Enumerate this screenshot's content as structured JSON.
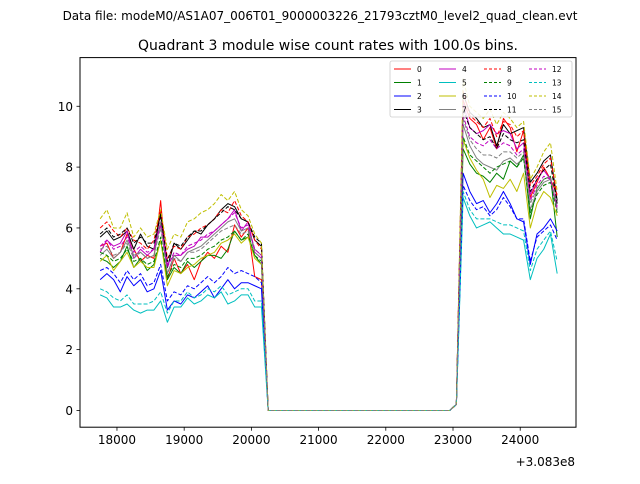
{
  "file_label": "Data file: modeM0/AS1A07_006T01_9000003226_21793cztM0_level2_quad_clean.evt",
  "chart_data": {
    "type": "line",
    "title": "Quadrant 3 module wise count rates with 100.0s bins.",
    "xlabel": "",
    "ylabel": "",
    "x_offset_label": "+3.083e8",
    "xlim": [
      17450,
      24830
    ],
    "ylim": [
      -0.55,
      11.6
    ],
    "x_ticks": [
      18000,
      19000,
      20000,
      21000,
      22000,
      23000,
      24000
    ],
    "x_tick_labels": [
      "18000",
      "19000",
      "20000",
      "21000",
      "22000",
      "23000",
      "24000"
    ],
    "y_ticks": [
      0,
      2,
      4,
      6,
      8,
      10
    ],
    "y_tick_labels": [
      "0",
      "2",
      "4",
      "6",
      "8",
      "10"
    ],
    "grid": false,
    "legend_position": "top-right",
    "x": [
      17750,
      17850,
      17950,
      18050,
      18150,
      18250,
      18350,
      18450,
      18550,
      18650,
      18750,
      18850,
      18950,
      19050,
      19150,
      19250,
      19350,
      19450,
      19550,
      19650,
      19750,
      19850,
      19950,
      20050,
      20150,
      20250,
      20350,
      20450,
      20550,
      20650,
      20750,
      20850,
      20950,
      21050,
      21150,
      21250,
      21350,
      21450,
      21550,
      21650,
      21750,
      21850,
      21950,
      22050,
      22150,
      22250,
      22350,
      22450,
      22550,
      22650,
      22750,
      22850,
      22950,
      23050,
      23150,
      23250,
      23350,
      23450,
      23550,
      23650,
      23750,
      23850,
      23950,
      24050,
      24150,
      24250,
      24350,
      24450,
      24550
    ],
    "series": [
      {
        "name": "0",
        "color": "#ff0000",
        "dash": false,
        "values": [
          5.4,
          5.5,
          5.0,
          5.2,
          5.8,
          5.3,
          4.9,
          5.1,
          5.0,
          6.9,
          4.3,
          5.0,
          4.5,
          4.8,
          4.3,
          4.9,
          5.2,
          5.0,
          5.4,
          5.2,
          6.1,
          5.7,
          6.0,
          4.4,
          4.3,
          0.0,
          0,
          0,
          0,
          0,
          0,
          0,
          0,
          0,
          0,
          0,
          0,
          0,
          0,
          0,
          0,
          0,
          0,
          0,
          0,
          0,
          0,
          0,
          0,
          0,
          0,
          0,
          0,
          0.2,
          10.2,
          9.6,
          9.4,
          8.9,
          9.3,
          8.6,
          9.6,
          9.3,
          8.5,
          9.2,
          7.0,
          7.5,
          8.0,
          7.6,
          7.1
        ]
      },
      {
        "name": "1",
        "color": "#008000",
        "dash": false,
        "values": [
          5.0,
          4.9,
          4.7,
          4.9,
          5.4,
          4.7,
          5.0,
          4.6,
          4.8,
          5.6,
          4.3,
          4.7,
          4.5,
          4.9,
          4.7,
          4.9,
          5.1,
          5.1,
          5.0,
          5.3,
          5.9,
          5.6,
          5.7,
          5.1,
          4.8,
          0.0,
          0,
          0,
          0,
          0,
          0,
          0,
          0,
          0,
          0,
          0,
          0,
          0,
          0,
          0,
          0,
          0,
          0,
          0,
          0,
          0,
          0,
          0,
          0,
          0,
          0,
          0,
          0,
          0.2,
          8.6,
          8.1,
          7.8,
          7.7,
          7.5,
          7.8,
          7.6,
          8.2,
          8.0,
          8.4,
          6.3,
          7.3,
          7.6,
          7.7,
          5.7
        ]
      },
      {
        "name": "2",
        "color": "#0000ff",
        "dash": false,
        "values": [
          4.3,
          4.5,
          4.3,
          3.9,
          4.4,
          4.1,
          4.3,
          3.9,
          4.0,
          4.6,
          3.3,
          3.6,
          3.5,
          3.8,
          3.7,
          3.9,
          4.1,
          3.7,
          4.0,
          4.3,
          4.0,
          4.2,
          4.2,
          4.1,
          4.0,
          0.0,
          0,
          0,
          0,
          0,
          0,
          0,
          0,
          0,
          0,
          0,
          0,
          0,
          0,
          0,
          0,
          0,
          0,
          0,
          0,
          0,
          0,
          0,
          0,
          0,
          0,
          0,
          0,
          0.2,
          7.8,
          7.2,
          6.8,
          6.9,
          6.5,
          6.8,
          7.2,
          6.8,
          6.3,
          6.2,
          4.8,
          5.8,
          6.0,
          6.3,
          5.9
        ]
      },
      {
        "name": "3",
        "color": "#000000",
        "dash": false,
        "values": [
          5.7,
          5.9,
          5.6,
          5.7,
          5.9,
          5.3,
          5.8,
          5.4,
          5.3,
          6.5,
          4.7,
          5.5,
          5.3,
          5.6,
          5.9,
          5.8,
          6.1,
          6.3,
          6.6,
          6.8,
          6.7,
          6.3,
          6.2,
          5.6,
          5.4,
          0.0,
          0,
          0,
          0,
          0,
          0,
          0,
          0,
          0,
          0,
          0,
          0,
          0,
          0,
          0,
          0,
          0,
          0,
          0,
          0,
          0,
          0,
          0,
          0,
          0,
          0,
          0,
          0,
          0.2,
          10.4,
          9.8,
          9.6,
          9.3,
          9.4,
          8.7,
          9.4,
          9.1,
          9.2,
          9.3,
          7.5,
          7.8,
          8.2,
          8.4,
          6.9
        ]
      },
      {
        "name": "4",
        "color": "#c000c0",
        "dash": false,
        "values": [
          5.2,
          5.6,
          5.4,
          5.5,
          5.9,
          5.0,
          5.3,
          5.1,
          5.3,
          6.2,
          4.8,
          5.1,
          5.1,
          5.3,
          5.4,
          5.7,
          5.7,
          5.9,
          6.1,
          6.3,
          6.6,
          5.9,
          6.2,
          5.2,
          5.0,
          0.0,
          0,
          0,
          0,
          0,
          0,
          0,
          0,
          0,
          0,
          0,
          0,
          0,
          0,
          0,
          0,
          0,
          0,
          0,
          0,
          0,
          0,
          0,
          0,
          0,
          0,
          0,
          0,
          0.2,
          10.1,
          9.3,
          9.1,
          9.2,
          9.4,
          9.1,
          9.2,
          9.1,
          8.6,
          8.8,
          7.1,
          7.6,
          7.9,
          7.6,
          6.7
        ]
      },
      {
        "name": "5",
        "color": "#00bfbf",
        "dash": false,
        "values": [
          3.8,
          3.7,
          3.4,
          3.4,
          3.5,
          3.3,
          3.2,
          3.3,
          3.3,
          3.6,
          2.9,
          3.4,
          3.4,
          3.7,
          3.5,
          3.6,
          3.8,
          3.7,
          3.9,
          3.5,
          3.6,
          3.8,
          3.8,
          3.4,
          3.4,
          0.0,
          0,
          0,
          0,
          0,
          0,
          0,
          0,
          0,
          0,
          0,
          0,
          0,
          0,
          0,
          0,
          0,
          0,
          0,
          0,
          0,
          0,
          0,
          0,
          0,
          0,
          0,
          0,
          0.2,
          7.0,
          6.4,
          6.0,
          6.1,
          6.2,
          6.0,
          5.8,
          5.8,
          5.7,
          5.6,
          4.3,
          5.0,
          5.3,
          5.8,
          4.5
        ]
      },
      {
        "name": "6",
        "color": "#bfbf00",
        "dash": false,
        "values": [
          4.9,
          5.1,
          4.6,
          4.9,
          5.2,
          4.7,
          4.9,
          4.7,
          4.7,
          5.6,
          4.1,
          4.6,
          4.5,
          4.7,
          4.8,
          5.0,
          5.1,
          5.2,
          5.5,
          5.6,
          5.8,
          5.5,
          5.7,
          5.0,
          4.8,
          0.0,
          0,
          0,
          0,
          0,
          0,
          0,
          0,
          0,
          0,
          0,
          0,
          0,
          0,
          0,
          0,
          0,
          0,
          0,
          0,
          0,
          0,
          0,
          0,
          0,
          0,
          0,
          0,
          0.2,
          8.9,
          8.3,
          7.9,
          7.6,
          7.0,
          7.4,
          7.3,
          7.6,
          7.2,
          7.8,
          6.0,
          6.8,
          7.2,
          7.0,
          6.4
        ]
      },
      {
        "name": "7",
        "color": "#808080",
        "dash": false,
        "values": [
          5.1,
          5.3,
          5.0,
          5.2,
          5.6,
          5.1,
          5.2,
          5.0,
          5.1,
          6.2,
          4.5,
          5.1,
          4.9,
          5.2,
          5.3,
          5.4,
          5.6,
          5.8,
          6.0,
          6.2,
          6.3,
          5.9,
          6.0,
          5.3,
          5.1,
          0.0,
          0,
          0,
          0,
          0,
          0,
          0,
          0,
          0,
          0,
          0,
          0,
          0,
          0,
          0,
          0,
          0,
          0,
          0,
          0,
          0,
          0,
          0,
          0,
          0,
          0,
          0,
          0,
          0.2,
          9.4,
          8.7,
          8.3,
          8.1,
          8.0,
          7.9,
          8.2,
          8.3,
          8.1,
          8.3,
          6.6,
          7.2,
          7.5,
          7.6,
          6.6
        ]
      },
      {
        "name": "8",
        "color": "#ff0000",
        "dash": true,
        "values": [
          6.0,
          6.2,
          5.9,
          5.7,
          6.0,
          5.6,
          5.5,
          5.3,
          5.6,
          6.6,
          5.0,
          5.4,
          5.3,
          5.7,
          5.8,
          6.0,
          6.1,
          6.3,
          6.6,
          6.5,
          6.9,
          6.4,
          6.2,
          5.6,
          5.3,
          0.0,
          0,
          0,
          0,
          0,
          0,
          0,
          0,
          0,
          0,
          0,
          0,
          0,
          0,
          0,
          0,
          0,
          0,
          0,
          0,
          0,
          0,
          0,
          0,
          0,
          0,
          0,
          0,
          0.2,
          10.5,
          9.7,
          9.5,
          9.3,
          9.6,
          9.0,
          9.5,
          9.4,
          9.0,
          9.2,
          7.4,
          7.7,
          8.1,
          8.3,
          7.0
        ]
      },
      {
        "name": "9",
        "color": "#008000",
        "dash": true,
        "values": [
          5.2,
          5.1,
          4.9,
          5.0,
          5.3,
          4.9,
          5.0,
          4.8,
          4.9,
          5.7,
          4.4,
          4.8,
          4.7,
          5.0,
          5.0,
          5.1,
          5.3,
          5.4,
          5.6,
          5.7,
          5.9,
          5.6,
          5.8,
          5.1,
          4.9,
          0.0,
          0,
          0,
          0,
          0,
          0,
          0,
          0,
          0,
          0,
          0,
          0,
          0,
          0,
          0,
          0,
          0,
          0,
          0,
          0,
          0,
          0,
          0,
          0,
          0,
          0,
          0,
          0,
          0.2,
          9.0,
          8.4,
          8.2,
          8.0,
          7.8,
          8.0,
          8.1,
          8.2,
          8.0,
          8.3,
          6.5,
          7.1,
          7.4,
          7.5,
          6.5
        ]
      },
      {
        "name": "10",
        "color": "#0000ff",
        "dash": true,
        "values": [
          4.6,
          4.7,
          4.5,
          4.2,
          4.6,
          4.3,
          4.5,
          4.1,
          4.2,
          4.8,
          3.6,
          3.9,
          3.8,
          4.1,
          4.0,
          4.2,
          4.4,
          4.2,
          4.4,
          4.7,
          4.5,
          4.6,
          4.5,
          4.4,
          4.2,
          0.0,
          0,
          0,
          0,
          0,
          0,
          0,
          0,
          0,
          0,
          0,
          0,
          0,
          0,
          0,
          0,
          0,
          0,
          0,
          0,
          0,
          0,
          0,
          0,
          0,
          0,
          0,
          0,
          0.2,
          7.4,
          6.9,
          6.6,
          6.7,
          6.4,
          6.6,
          7.0,
          6.7,
          6.3,
          6.3,
          4.9,
          5.7,
          5.9,
          6.1,
          5.6
        ]
      },
      {
        "name": "11",
        "color": "#000000",
        "dash": true,
        "values": [
          5.8,
          6.0,
          5.7,
          5.8,
          6.0,
          5.5,
          5.7,
          5.5,
          5.5,
          6.4,
          4.9,
          5.5,
          5.4,
          5.7,
          5.9,
          5.9,
          6.1,
          6.3,
          6.5,
          6.7,
          6.6,
          6.3,
          6.2,
          5.7,
          5.5,
          0.0,
          0,
          0,
          0,
          0,
          0,
          0,
          0,
          0,
          0,
          0,
          0,
          0,
          0,
          0,
          0,
          0,
          0,
          0,
          0,
          0,
          0,
          0,
          0,
          0,
          0,
          0,
          0,
          0.2,
          9.9,
          9.3,
          9.1,
          8.9,
          9.0,
          8.6,
          9.1,
          8.9,
          8.8,
          8.9,
          7.2,
          7.6,
          7.9,
          8.1,
          6.8
        ]
      },
      {
        "name": "12",
        "color": "#c000c0",
        "dash": true,
        "values": [
          5.4,
          5.6,
          5.3,
          5.4,
          5.7,
          5.2,
          5.4,
          5.2,
          5.3,
          6.1,
          4.7,
          5.2,
          5.1,
          5.4,
          5.5,
          5.6,
          5.8,
          5.9,
          6.1,
          6.3,
          6.5,
          6.0,
          6.1,
          5.3,
          5.1,
          0.0,
          0,
          0,
          0,
          0,
          0,
          0,
          0,
          0,
          0,
          0,
          0,
          0,
          0,
          0,
          0,
          0,
          0,
          0,
          0,
          0,
          0,
          0,
          0,
          0,
          0,
          0,
          0,
          0.2,
          9.7,
          9.0,
          8.8,
          8.7,
          8.9,
          8.6,
          8.8,
          8.7,
          8.4,
          8.6,
          6.9,
          7.4,
          7.7,
          7.6,
          6.6
        ]
      },
      {
        "name": "13",
        "color": "#00bfbf",
        "dash": true,
        "values": [
          4.0,
          3.9,
          3.7,
          3.6,
          3.8,
          3.5,
          3.5,
          3.5,
          3.6,
          3.9,
          3.2,
          3.6,
          3.6,
          3.9,
          3.7,
          3.8,
          4.0,
          3.9,
          4.1,
          3.8,
          3.9,
          4.0,
          4.0,
          3.6,
          3.6,
          0.0,
          0,
          0,
          0,
          0,
          0,
          0,
          0,
          0,
          0,
          0,
          0,
          0,
          0,
          0,
          0,
          0,
          0,
          0,
          0,
          0,
          0,
          0,
          0,
          0,
          0,
          0,
          0,
          0.2,
          7.2,
          6.6,
          6.3,
          6.3,
          6.3,
          6.2,
          6.1,
          6.1,
          6.0,
          5.9,
          4.6,
          5.3,
          5.6,
          5.9,
          4.9
        ]
      },
      {
        "name": "14",
        "color": "#bfbf00",
        "dash": true,
        "values": [
          6.3,
          6.6,
          6.0,
          6.0,
          6.5,
          5.7,
          6.0,
          5.7,
          5.8,
          6.6,
          5.3,
          5.8,
          5.7,
          6.2,
          6.3,
          6.5,
          6.6,
          6.8,
          7.1,
          6.9,
          7.2,
          6.6,
          6.4,
          5.8,
          5.5,
          0.0,
          0,
          0,
          0,
          0,
          0,
          0,
          0,
          0,
          0,
          0,
          0,
          0,
          0,
          0,
          0,
          0,
          0,
          0,
          0,
          0,
          0,
          0,
          0,
          0,
          0,
          0,
          0,
          0.2,
          10.9,
          10.0,
          9.8,
          9.6,
          9.9,
          9.4,
          9.8,
          9.6,
          9.3,
          9.5,
          7.6,
          8.0,
          8.5,
          8.8,
          7.2
        ]
      },
      {
        "name": "15",
        "color": "#808080",
        "dash": true,
        "values": [
          5.3,
          5.4,
          5.1,
          5.2,
          5.5,
          5.0,
          5.2,
          5.0,
          5.1,
          6.0,
          4.5,
          5.0,
          4.9,
          5.2,
          5.2,
          5.3,
          5.5,
          5.7,
          5.9,
          6.0,
          6.1,
          5.8,
          5.9,
          5.2,
          5.0,
          0.0,
          0,
          0,
          0,
          0,
          0,
          0,
          0,
          0,
          0,
          0,
          0,
          0,
          0,
          0,
          0,
          0,
          0,
          0,
          0,
          0,
          0,
          0,
          0,
          0,
          0,
          0,
          0,
          0.2,
          9.6,
          8.9,
          8.6,
          8.4,
          8.4,
          8.3,
          8.5,
          8.5,
          8.3,
          8.5,
          6.8,
          7.3,
          7.6,
          7.7,
          6.6
        ]
      }
    ]
  }
}
